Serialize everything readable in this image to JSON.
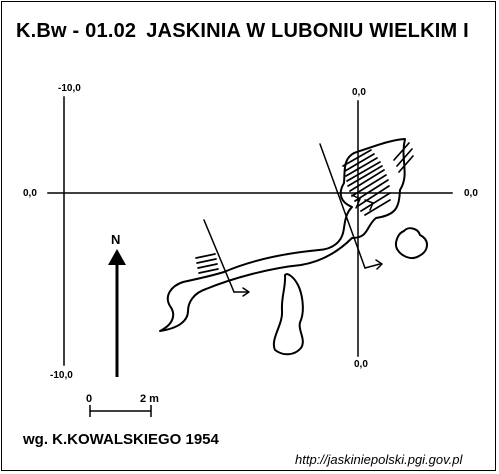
{
  "map": {
    "title": {
      "code": "K.Bw - 01.02",
      "name": "JASKINIA W LUBONIU WIELKIM I"
    },
    "coordinates": {
      "left_top": "-10,0",
      "left_bottom": "-10,0",
      "left_middle": "0,0",
      "right_top": "0,0",
      "right_middle": "0,0",
      "right_bottom": "0,0"
    },
    "north_label": "N",
    "scale": {
      "start_label": "0",
      "end_label": "2 m"
    },
    "author": "wg. K.KOWALSKIEGO 1954",
    "source": "http://jaskiniepolski.pgi.gov.pl"
  }
}
